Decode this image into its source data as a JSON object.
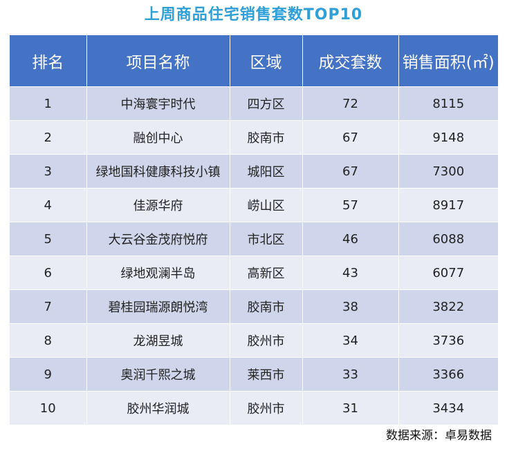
{
  "title": "上周商品住宅销售套数TOP10",
  "table": {
    "headers": [
      "排名",
      "项目名称",
      "区域",
      "成交套数",
      "销售面积(㎡)"
    ],
    "rows": [
      {
        "rank": "1",
        "name": "中海寰宇时代",
        "district": "四方区",
        "units": "72",
        "area": "8115"
      },
      {
        "rank": "2",
        "name": "融创中心",
        "district": "胶南市",
        "units": "67",
        "area": "9148"
      },
      {
        "rank": "3",
        "name": "绿地国科健康科技小镇",
        "district": "城阳区",
        "units": "67",
        "area": "7300"
      },
      {
        "rank": "4",
        "name": "佳源华府",
        "district": "崂山区",
        "units": "57",
        "area": "8917"
      },
      {
        "rank": "5",
        "name": "大云谷金茂府悦府",
        "district": "市北区",
        "units": "46",
        "area": "6088"
      },
      {
        "rank": "6",
        "name": "绿地观澜半岛",
        "district": "高新区",
        "units": "43",
        "area": "6077"
      },
      {
        "rank": "7",
        "name": "碧桂园瑞源朗悦湾",
        "district": "胶南市",
        "units": "38",
        "area": "3822"
      },
      {
        "rank": "8",
        "name": "龙湖昱城",
        "district": "胶州市",
        "units": "34",
        "area": "3736"
      },
      {
        "rank": "9",
        "name": "奥润千熙之城",
        "district": "莱西市",
        "units": "33",
        "area": "3366"
      },
      {
        "rank": "10",
        "name": "胶州华润城",
        "district": "胶州市",
        "units": "31",
        "area": "3434"
      }
    ]
  },
  "source": "数据来源：卓易数据",
  "colors": {
    "title": "#2f9fd8",
    "header_bg": "#4472c4",
    "row_odd": "#cfd5ea",
    "row_even": "#e9ebf5"
  }
}
